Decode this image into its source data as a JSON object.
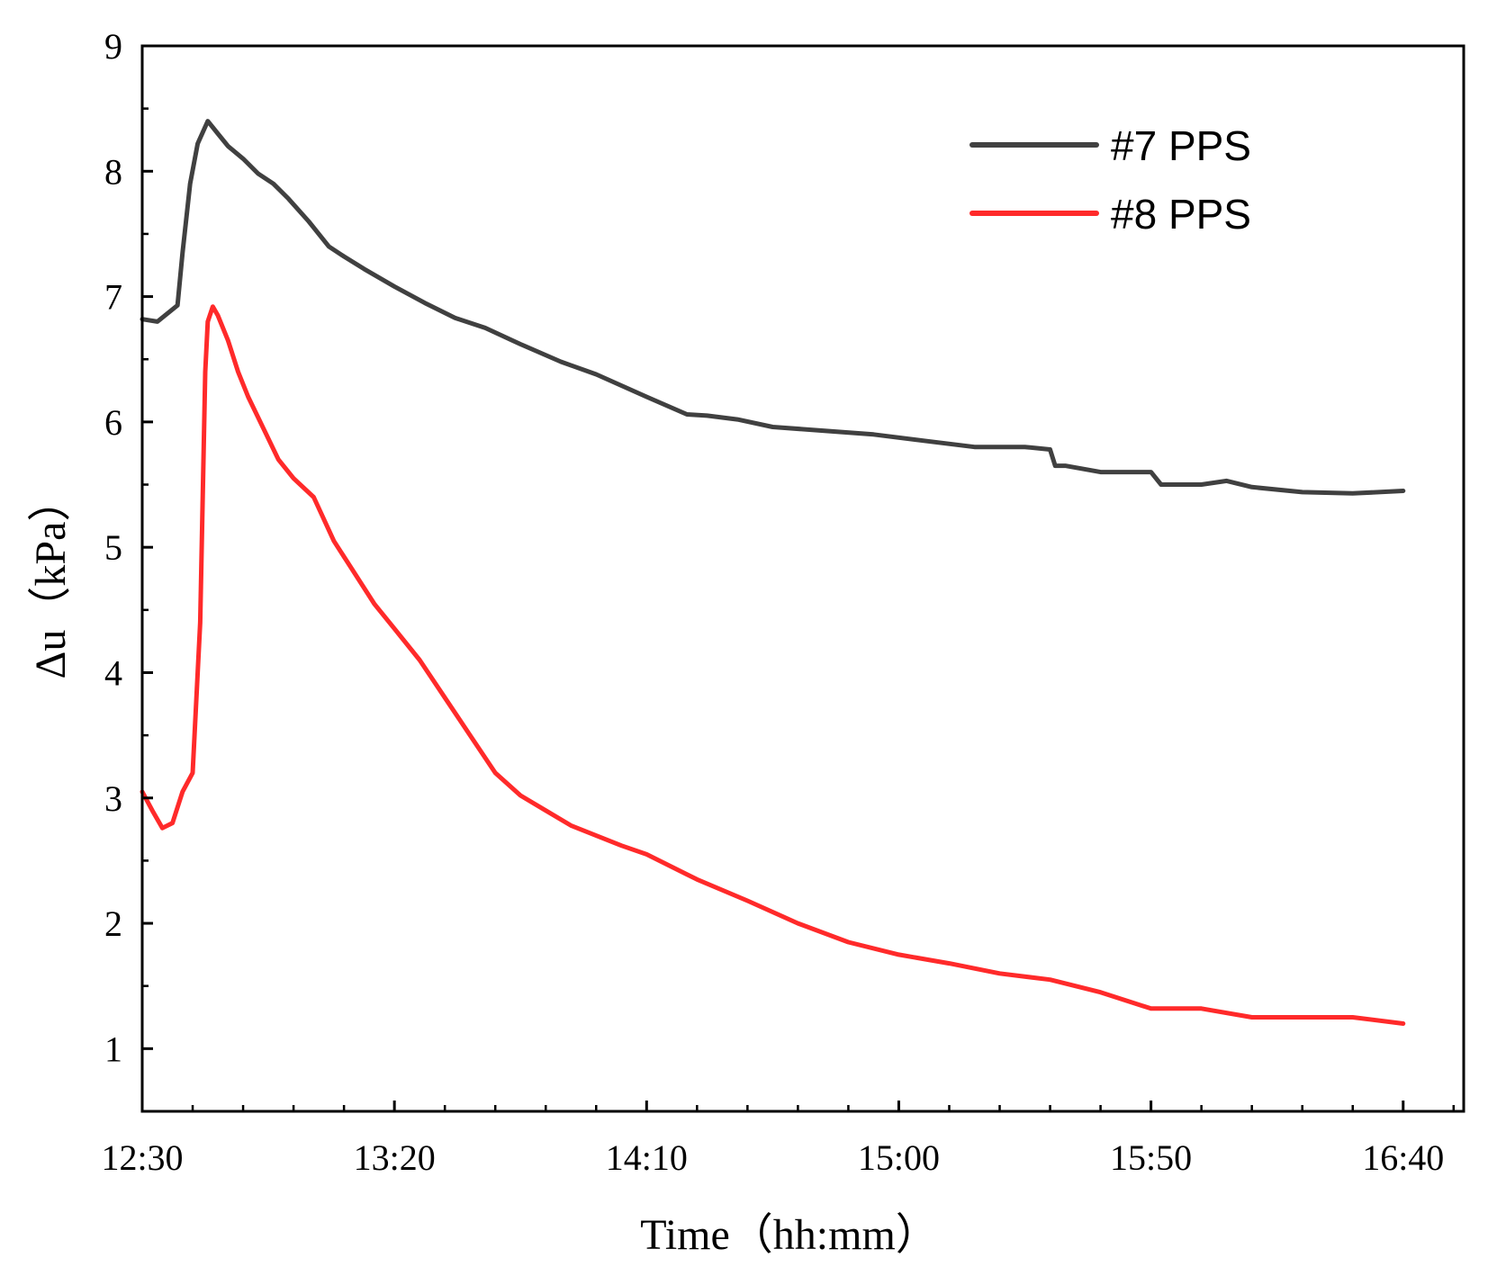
{
  "chart_data": {
    "type": "line",
    "xlabel": "Time（hh:mm）",
    "ylabel": "Δu（kPa）",
    "x_unit": "minutes since 12:30",
    "xlim": [
      0,
      262
    ],
    "ylim": [
      0.5,
      9
    ],
    "x_ticks": [
      {
        "value": 0,
        "label": "12:30"
      },
      {
        "value": 50,
        "label": "13:20"
      },
      {
        "value": 100,
        "label": "14:10"
      },
      {
        "value": 150,
        "label": "15:00"
      },
      {
        "value": 200,
        "label": "15:50"
      },
      {
        "value": 250,
        "label": "16:40"
      }
    ],
    "y_ticks": [
      1,
      2,
      3,
      4,
      5,
      6,
      7,
      8,
      9
    ],
    "legend_position": "top-right",
    "series": [
      {
        "name": "#7 PPS",
        "color": "#404040",
        "x": [
          0,
          3,
          7,
          8,
          9.5,
          11,
          13,
          15,
          17,
          20,
          23,
          26,
          29,
          33,
          37,
          40,
          44,
          50,
          56,
          62,
          68,
          75,
          83,
          90,
          100,
          108,
          112,
          118,
          125,
          135,
          145,
          155,
          165,
          175,
          180,
          181,
          183,
          190,
          200,
          202,
          210,
          215,
          220,
          230,
          240,
          250
        ],
        "values": [
          6.82,
          6.8,
          6.93,
          7.35,
          7.9,
          8.22,
          8.4,
          8.3,
          8.2,
          8.1,
          7.98,
          7.9,
          7.78,
          7.6,
          7.4,
          7.32,
          7.22,
          7.08,
          6.95,
          6.83,
          6.75,
          6.62,
          6.48,
          6.38,
          6.2,
          6.06,
          6.05,
          6.02,
          5.96,
          5.93,
          5.9,
          5.85,
          5.8,
          5.8,
          5.78,
          5.65,
          5.65,
          5.6,
          5.6,
          5.5,
          5.5,
          5.53,
          5.48,
          5.44,
          5.43,
          5.45
        ]
      },
      {
        "name": "#8 PPS",
        "color": "#ff2a2a",
        "x": [
          0,
          2,
          4,
          6,
          8,
          10,
          11.5,
          12.5,
          13,
          14,
          15,
          17,
          19,
          21,
          24,
          27,
          30,
          34,
          38,
          42,
          46,
          50,
          55,
          60,
          65,
          70,
          75,
          80,
          85,
          90,
          95,
          100,
          110,
          120,
          130,
          140,
          150,
          160,
          170,
          180,
          190,
          200,
          210,
          220,
          230,
          240,
          250
        ],
        "values": [
          3.05,
          2.9,
          2.76,
          2.8,
          3.05,
          3.2,
          4.4,
          6.4,
          6.8,
          6.92,
          6.85,
          6.65,
          6.4,
          6.2,
          5.95,
          5.7,
          5.55,
          5.4,
          5.05,
          4.8,
          4.55,
          4.35,
          4.1,
          3.8,
          3.5,
          3.2,
          3.02,
          2.9,
          2.78,
          2.7,
          2.62,
          2.55,
          2.35,
          2.18,
          2.0,
          1.85,
          1.75,
          1.68,
          1.6,
          1.55,
          1.45,
          1.32,
          1.32,
          1.25,
          1.25,
          1.25,
          1.2
        ]
      }
    ]
  }
}
